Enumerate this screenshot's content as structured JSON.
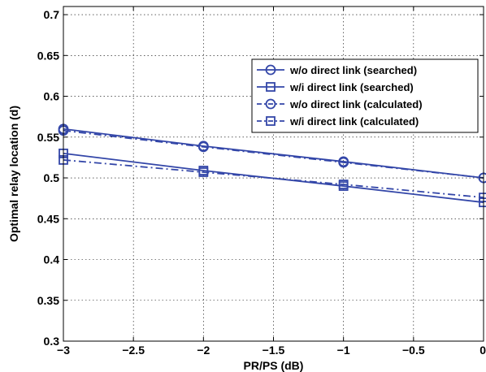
{
  "chart_data": {
    "type": "line",
    "xlabel": "PR/PS (dB)",
    "ylabel": "Optimal relay location (d)",
    "xlim": [
      -3,
      0
    ],
    "ylim": [
      0.3,
      0.71
    ],
    "grid": true,
    "legend_position": "top-right",
    "x_ticks": [
      -3,
      -2.5,
      -2,
      -1.5,
      -1,
      -0.5,
      0
    ],
    "x_tick_labels": [
      "−3",
      "−2.5",
      "−2",
      "−1.5",
      "−1",
      "−0.5",
      "0"
    ],
    "y_ticks": [
      0.3,
      0.35,
      0.4,
      0.45,
      0.5,
      0.55,
      0.6,
      0.65,
      0.7
    ],
    "y_tick_labels": [
      "0.3",
      "0.35",
      "0.4",
      "0.45",
      "0.5",
      "0.55",
      "0.6",
      "0.65",
      "0.7"
    ],
    "series": [
      {
        "name": "w/o direct link (searched)",
        "x": [
          -3,
          -2,
          -1,
          0
        ],
        "values": [
          0.56,
          0.539,
          0.52,
          0.5
        ],
        "marker": "circle",
        "dash": "solid",
        "color": "#3346a8"
      },
      {
        "name": "w/i direct link (searched)",
        "x": [
          -3,
          -2,
          -1,
          0
        ],
        "values": [
          0.53,
          0.509,
          0.49,
          0.47
        ],
        "marker": "square",
        "dash": "solid",
        "color": "#3346a8"
      },
      {
        "name": "w/o direct link (calculated)",
        "x": [
          -3,
          -2,
          -1,
          0
        ],
        "values": [
          0.558,
          0.538,
          0.519,
          0.5
        ],
        "marker": "circle",
        "dash": "dashdot",
        "color": "#3346a8"
      },
      {
        "name": "w/i direct link (calculated)",
        "x": [
          -3,
          -2,
          -1,
          0
        ],
        "values": [
          0.522,
          0.507,
          0.492,
          0.476
        ],
        "marker": "square",
        "dash": "dashdot",
        "color": "#3346a8"
      }
    ]
  }
}
